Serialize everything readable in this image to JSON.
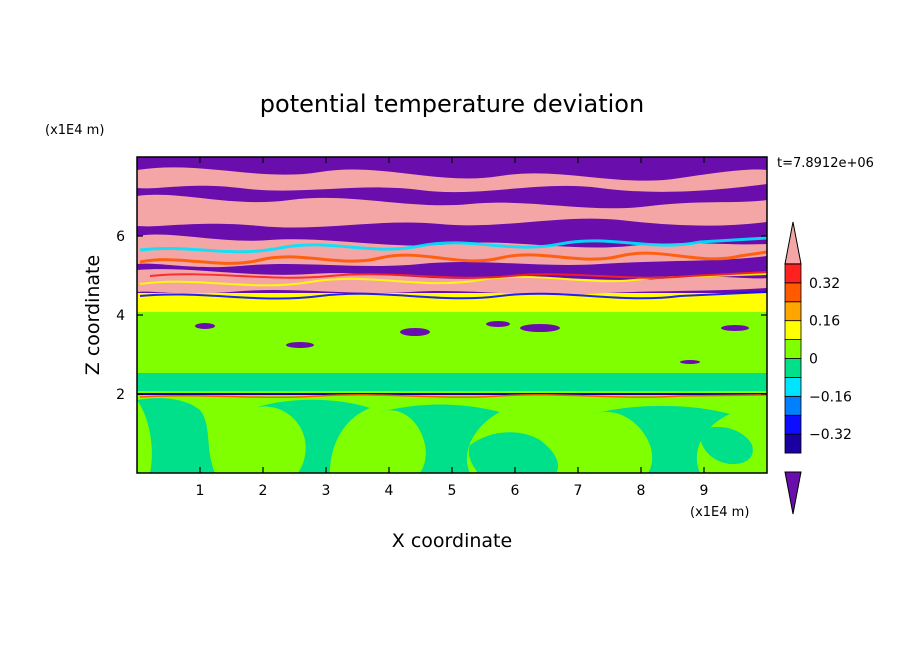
{
  "chart_data": {
    "type": "heatmap",
    "title": "potential temperature deviation",
    "xlabel": "X coordinate",
    "ylabel": "Z coordinate",
    "x_unit": "(x1E4 m)",
    "y_unit": "(x1E4 m)",
    "time_label": "t=7.8912e+06",
    "xlim": [
      0,
      10
    ],
    "ylim": [
      0,
      8
    ],
    "x_ticks": [
      1,
      2,
      3,
      4,
      5,
      6,
      7,
      8,
      9
    ],
    "y_ticks": [
      2,
      4,
      6
    ],
    "colorbar": {
      "levels": [
        -0.48,
        -0.4,
        -0.32,
        -0.24,
        -0.16,
        -0.08,
        0,
        0.08,
        0.16,
        0.24,
        0.32,
        0.4,
        0.48
      ],
      "tick_labels": [
        "0.32",
        "0.16",
        "0",
        "−0.16",
        "−0.32"
      ],
      "tick_values": [
        0.32,
        0.16,
        0,
        -0.16,
        -0.32
      ],
      "colors_bottom_to_top": [
        "#6a0dad",
        "#1a00a0",
        "#0d0dff",
        "#0080ff",
        "#00e5ff",
        "#00e08a",
        "#80ff00",
        "#ffff00",
        "#ffa500",
        "#ff5a00",
        "#ff2020",
        "#f4a6a6"
      ],
      "extend": "both"
    },
    "field_layers": [
      {
        "z_range": [
          0,
          2.0
        ],
        "description_value": 0.04,
        "dominant_color": "#80ff00",
        "secondary_value": -0.04,
        "secondary_color": "#00e08a"
      },
      {
        "z_range": [
          2.0,
          4.1
        ],
        "description_value": 0.04,
        "dominant_color": "#80ff00"
      },
      {
        "z_range": [
          4.1,
          4.5
        ],
        "description_value": 0.12,
        "dominant_color": "#ffff00"
      },
      {
        "z_range": [
          4.5,
          8.0
        ],
        "description_value": "alternating",
        "dominant_color": "#f4a6a6",
        "secondary_color": "#6a0dad"
      }
    ]
  }
}
